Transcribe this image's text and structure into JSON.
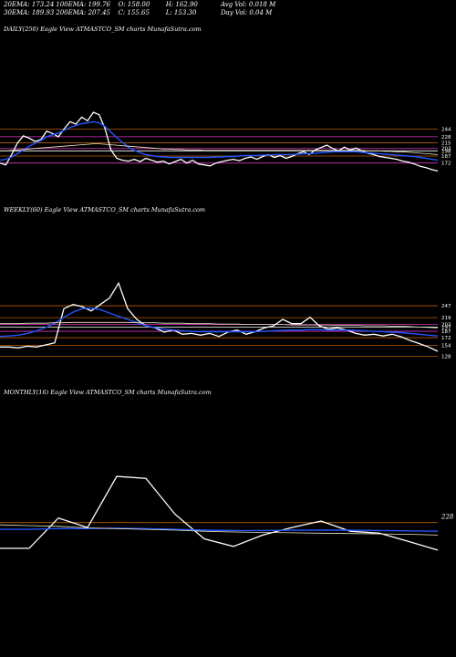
{
  "header": {
    "row1": [
      {
        "label": "20EMA: 173.24"
      },
      {
        "label": "100EMA: 199.76"
      },
      {
        "label": "O: 158.00"
      },
      {
        "label": "H: 162.90"
      },
      {
        "label": "Avg Vol: 0.018  M"
      }
    ],
    "row2": [
      {
        "label": "30EMA: 189.93"
      },
      {
        "label": "200EMA: 207.45"
      },
      {
        "label": "C: 155.65"
      },
      {
        "label": "L: 153.30"
      },
      {
        "label": "Day Vol: 0.04  M"
      }
    ]
  },
  "colors": {
    "price": "#ffffff",
    "ema_blue": "#2255ff",
    "ema_orange": "#cc7a00",
    "ema_cream": "#f0e6c8",
    "magenta": "#d633c0",
    "orange_line": "#b85c00"
  },
  "chart_data": [
    {
      "type": "line",
      "name": "daily",
      "title": "DAILY(250) Eagle  View  ATMASTCO_SM charts MunafaSutra.com",
      "price_levels": [
        244,
        228,
        215,
        203,
        198,
        187,
        172
      ],
      "series": [
        {
          "name": "price",
          "values": [
            172,
            168,
            190,
            215,
            230,
            225,
            218,
            222,
            240,
            235,
            228,
            245,
            260,
            255,
            270,
            262,
            280,
            275,
            245,
            200,
            182,
            178,
            176,
            180,
            175,
            182,
            178,
            174,
            176,
            170,
            175,
            180,
            172,
            178,
            170,
            168,
            166,
            172,
            175,
            178,
            180,
            177,
            182,
            185,
            180,
            186,
            190,
            184,
            188,
            182,
            186,
            192,
            196,
            190,
            200,
            205,
            210,
            203,
            198,
            206,
            200,
            204,
            198,
            193,
            190,
            186,
            184,
            182,
            180,
            176,
            174,
            170,
            165,
            162,
            158,
            155
          ]
        },
        {
          "name": "ema_blue",
          "values": [
            178,
            180,
            185,
            192,
            200,
            208,
            214,
            220,
            228,
            232,
            236,
            242,
            248,
            252,
            256,
            258,
            260,
            258,
            250,
            238,
            226,
            216,
            206,
            199,
            194,
            190,
            188,
            186,
            185,
            184,
            184,
            184,
            184,
            184,
            184,
            184,
            184,
            185,
            185,
            186,
            186,
            187,
            188,
            188,
            188,
            189,
            189,
            190,
            190,
            190,
            190,
            191,
            192,
            192,
            193,
            194,
            195,
            196,
            196,
            196,
            196,
            196,
            195,
            194,
            193,
            192,
            191,
            190,
            189,
            188,
            187,
            186,
            184,
            182,
            180,
            178
          ]
        },
        {
          "name": "ema_cream",
          "values": [
            198,
            198,
            199,
            200,
            201,
            202,
            203,
            204,
            205,
            206,
            207,
            208,
            209,
            210,
            211,
            212,
            213,
            213,
            212,
            211,
            210,
            209,
            208,
            207,
            206,
            205,
            204,
            203,
            202,
            202,
            201,
            201,
            200,
            200,
            200,
            199,
            199,
            199,
            199,
            199,
            199,
            199,
            199,
            199,
            199,
            199,
            199,
            199,
            199,
            199,
            199,
            199,
            199,
            199,
            199,
            199,
            199,
            199,
            199,
            199,
            199,
            199,
            199,
            198,
            198,
            198,
            197,
            197,
            196,
            196,
            195,
            194,
            193,
            192,
            191,
            190
          ]
        }
      ]
    },
    {
      "type": "line",
      "name": "weekly",
      "title": "WEEKLY(60) Eagle  View  ATMASTCO_SM charts MunafaSutra.com",
      "price_levels": [
        247,
        219,
        203,
        197,
        187,
        172,
        154,
        128
      ],
      "series": [
        {
          "name": "price",
          "values": [
            150,
            150,
            148,
            152,
            150,
            155,
            160,
            240,
            250,
            245,
            235,
            250,
            265,
            300,
            240,
            215,
            200,
            195,
            185,
            190,
            180,
            182,
            178,
            182,
            175,
            185,
            190,
            180,
            186,
            195,
            200,
            215,
            205,
            205,
            220,
            200,
            192,
            195,
            190,
            182,
            178,
            180,
            176,
            180,
            174,
            165,
            158,
            150,
            140
          ]
        },
        {
          "name": "ema_blue",
          "values": [
            175,
            176,
            178,
            182,
            188,
            196,
            206,
            220,
            232,
            240,
            242,
            238,
            230,
            222,
            215,
            208,
            200,
            196,
            192,
            190,
            188,
            187,
            186,
            186,
            186,
            186,
            186,
            186,
            186,
            187,
            188,
            189,
            190,
            190,
            191,
            191,
            190,
            190,
            190,
            189,
            188,
            187,
            186,
            185,
            184,
            182,
            180,
            178,
            176
          ]
        },
        {
          "name": "ema_cream",
          "values": [
            205,
            205,
            205,
            206,
            206,
            206,
            207,
            207,
            208,
            208,
            208,
            208,
            208,
            208,
            208,
            207,
            207,
            207,
            206,
            206,
            206,
            205,
            205,
            205,
            204,
            204,
            204,
            203,
            203,
            203,
            203,
            203,
            202,
            202,
            202,
            202,
            202,
            201,
            201,
            201,
            200,
            200,
            200,
            199,
            199,
            198,
            197,
            196,
            195
          ]
        }
      ]
    },
    {
      "type": "line",
      "name": "monthly",
      "title": "MONTHLY(16) Eagle  View  ATMASTCO_SM charts MunafaSutra.com",
      "price_levels": [
        228
      ],
      "series": [
        {
          "name": "price",
          "values": [
            160,
            160,
            240,
            215,
            350,
            345,
            250,
            185,
            165,
            195,
            215,
            232,
            205,
            200,
            178,
            155
          ]
        },
        {
          "name": "ema_blue",
          "values": [
            210,
            210,
            212,
            212,
            213,
            212,
            210,
            208,
            207,
            207,
            208,
            208,
            208,
            207,
            206,
            205
          ]
        },
        {
          "name": "ema_cream",
          "values": [
            222,
            220,
            218,
            214,
            212,
            210,
            208,
            205,
            203,
            202,
            201,
            200,
            199,
            198,
            197,
            195
          ]
        }
      ]
    }
  ]
}
